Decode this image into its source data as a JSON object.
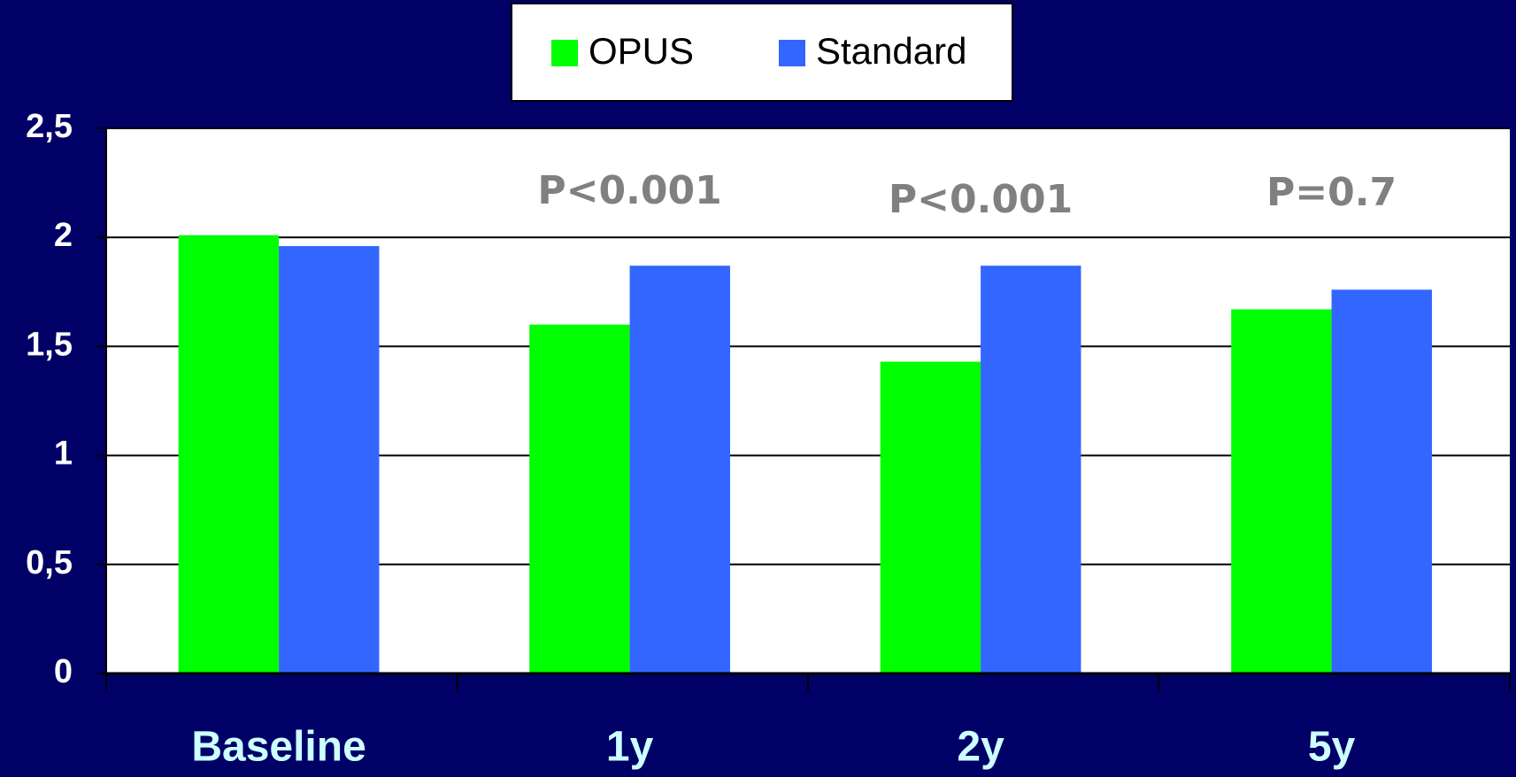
{
  "chart_data": {
    "type": "bar",
    "categories": [
      "Baseline",
      "1y",
      "2y",
      "5y"
    ],
    "series": [
      {
        "name": "OPUS",
        "color": "#00ff00",
        "values": [
          2.01,
          1.6,
          1.43,
          1.67
        ]
      },
      {
        "name": "Standard",
        "color": "#3366ff",
        "values": [
          1.96,
          1.87,
          1.87,
          1.76
        ]
      }
    ],
    "ylim": [
      0,
      2.5
    ],
    "yticks": [
      0,
      {
        "value": 0.5,
        "label": "0,5"
      },
      1,
      {
        "value": 1.5,
        "label": "1,5"
      },
      2,
      {
        "value": 2.5,
        "label": "2,5"
      }
    ],
    "grid": true,
    "legend": "top",
    "annotations": [
      "P<0.001",
      "P<0.001",
      "P=0.7"
    ]
  }
}
